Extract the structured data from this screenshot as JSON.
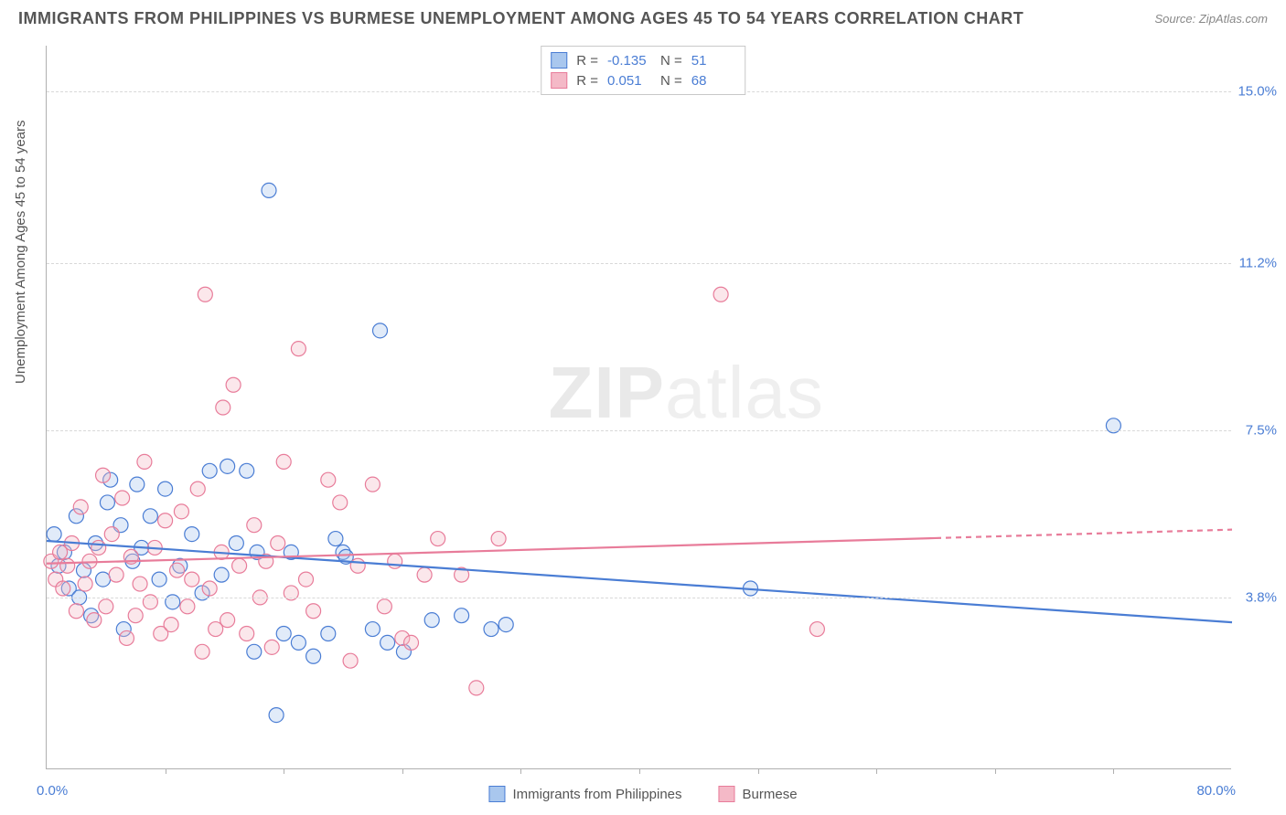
{
  "header": {
    "title": "IMMIGRANTS FROM PHILIPPINES VS BURMESE UNEMPLOYMENT AMONG AGES 45 TO 54 YEARS CORRELATION CHART",
    "source": "Source: ZipAtlas.com"
  },
  "watermark": {
    "bold": "ZIP",
    "light": "atlas"
  },
  "chart": {
    "type": "scatter-correlation",
    "background_color": "#ffffff",
    "grid_color": "#d8d8d8",
    "axis_color": "#b0b0b0",
    "tick_label_color": "#4a7dd4",
    "label_fontsize": 15,
    "title_fontsize": 18,
    "xlim": [
      0,
      80
    ],
    "ylim": [
      0,
      16
    ],
    "x_min_label": "0.0%",
    "x_max_label": "80.0%",
    "y_axis_label": "Unemployment Among Ages 45 to 54 years",
    "y_ticks": [
      {
        "value": 3.8,
        "label": "3.8%"
      },
      {
        "value": 7.5,
        "label": "7.5%"
      },
      {
        "value": 11.2,
        "label": "11.2%"
      },
      {
        "value": 15.0,
        "label": "15.0%"
      }
    ],
    "x_tick_positions": [
      8,
      16,
      24,
      32,
      40,
      48,
      56,
      64,
      72
    ],
    "marker_radius": 8,
    "marker_stroke_width": 1.2,
    "marker_fill_opacity": 0.35,
    "line_width": 2.2,
    "legend_bottom": [
      {
        "label": "Immigrants from Philippines",
        "fill": "#a9c7ee",
        "stroke": "#4a7dd4"
      },
      {
        "label": "Burmese",
        "fill": "#f4b9c7",
        "stroke": "#e87c9a"
      }
    ],
    "legend_top": [
      {
        "swatch_fill": "#a9c7ee",
        "swatch_stroke": "#4a7dd4",
        "r_label": "R =",
        "r_value": "-0.135",
        "n_label": "N =",
        "n_value": "51"
      },
      {
        "swatch_fill": "#f4b9c7",
        "swatch_stroke": "#e87c9a",
        "r_label": "R =",
        "r_value": "0.051",
        "n_label": "N =",
        "n_value": "68"
      }
    ],
    "series": [
      {
        "name": "Immigrants from Philippines",
        "color_fill": "#a9c7ee",
        "color_stroke": "#4a7dd4",
        "trend": {
          "y_at_x0": 5.05,
          "y_at_xmax": 3.25,
          "solid_until_x": 80,
          "dash_pattern": "6,5"
        },
        "points": [
          [
            0.5,
            5.2
          ],
          [
            0.8,
            4.5
          ],
          [
            1.2,
            4.8
          ],
          [
            1.5,
            4.0
          ],
          [
            2.0,
            5.6
          ],
          [
            2.2,
            3.8
          ],
          [
            2.5,
            4.4
          ],
          [
            3.0,
            3.4
          ],
          [
            3.3,
            5.0
          ],
          [
            3.8,
            4.2
          ],
          [
            4.1,
            5.9
          ],
          [
            4.3,
            6.4
          ],
          [
            5.0,
            5.4
          ],
          [
            5.2,
            3.1
          ],
          [
            5.8,
            4.6
          ],
          [
            6.1,
            6.3
          ],
          [
            6.4,
            4.9
          ],
          [
            7.0,
            5.6
          ],
          [
            7.6,
            4.2
          ],
          [
            8.0,
            6.2
          ],
          [
            8.5,
            3.7
          ],
          [
            9.0,
            4.5
          ],
          [
            9.8,
            5.2
          ],
          [
            10.5,
            3.9
          ],
          [
            11.0,
            6.6
          ],
          [
            11.8,
            4.3
          ],
          [
            12.2,
            6.7
          ],
          [
            12.8,
            5.0
          ],
          [
            13.5,
            6.6
          ],
          [
            14.0,
            2.6
          ],
          [
            14.2,
            4.8
          ],
          [
            15.0,
            12.8
          ],
          [
            15.5,
            1.2
          ],
          [
            16.0,
            3.0
          ],
          [
            16.5,
            4.8
          ],
          [
            17.0,
            2.8
          ],
          [
            18.0,
            2.5
          ],
          [
            19.0,
            3.0
          ],
          [
            19.5,
            5.1
          ],
          [
            20.0,
            4.8
          ],
          [
            20.2,
            4.7
          ],
          [
            22.0,
            3.1
          ],
          [
            22.5,
            9.7
          ],
          [
            23.0,
            2.8
          ],
          [
            24.1,
            2.6
          ],
          [
            26.0,
            3.3
          ],
          [
            28.0,
            3.4
          ],
          [
            30.0,
            3.1
          ],
          [
            31.0,
            3.2
          ],
          [
            47.5,
            4.0
          ],
          [
            72.0,
            7.6
          ]
        ]
      },
      {
        "name": "Burmese",
        "color_fill": "#f4b9c7",
        "color_stroke": "#e87c9a",
        "trend": {
          "y_at_x0": 4.55,
          "y_at_xmax": 5.3,
          "solid_until_x": 60,
          "dash_pattern": "6,5"
        },
        "points": [
          [
            0.3,
            4.6
          ],
          [
            0.6,
            4.2
          ],
          [
            0.9,
            4.8
          ],
          [
            1.1,
            4.0
          ],
          [
            1.4,
            4.5
          ],
          [
            1.7,
            5.0
          ],
          [
            2.0,
            3.5
          ],
          [
            2.3,
            5.8
          ],
          [
            2.6,
            4.1
          ],
          [
            2.9,
            4.6
          ],
          [
            3.2,
            3.3
          ],
          [
            3.5,
            4.9
          ],
          [
            3.8,
            6.5
          ],
          [
            4.0,
            3.6
          ],
          [
            4.4,
            5.2
          ],
          [
            4.7,
            4.3
          ],
          [
            5.1,
            6.0
          ],
          [
            5.4,
            2.9
          ],
          [
            5.7,
            4.7
          ],
          [
            6.0,
            3.4
          ],
          [
            6.3,
            4.1
          ],
          [
            6.6,
            6.8
          ],
          [
            7.0,
            3.7
          ],
          [
            7.3,
            4.9
          ],
          [
            7.7,
            3.0
          ],
          [
            8.0,
            5.5
          ],
          [
            8.4,
            3.2
          ],
          [
            8.8,
            4.4
          ],
          [
            9.1,
            5.7
          ],
          [
            9.5,
            3.6
          ],
          [
            9.8,
            4.2
          ],
          [
            10.2,
            6.2
          ],
          [
            10.5,
            2.6
          ],
          [
            10.7,
            10.5
          ],
          [
            11.0,
            4.0
          ],
          [
            11.4,
            3.1
          ],
          [
            11.8,
            4.8
          ],
          [
            11.9,
            8.0
          ],
          [
            12.2,
            3.3
          ],
          [
            12.6,
            8.5
          ],
          [
            13.0,
            4.5
          ],
          [
            13.5,
            3.0
          ],
          [
            14.0,
            5.4
          ],
          [
            14.4,
            3.8
          ],
          [
            14.8,
            4.6
          ],
          [
            15.2,
            2.7
          ],
          [
            15.6,
            5.0
          ],
          [
            16.0,
            6.8
          ],
          [
            16.5,
            3.9
          ],
          [
            17.0,
            9.3
          ],
          [
            17.5,
            4.2
          ],
          [
            18.0,
            3.5
          ],
          [
            19.0,
            6.4
          ],
          [
            19.8,
            5.9
          ],
          [
            20.5,
            2.4
          ],
          [
            21.0,
            4.5
          ],
          [
            22.0,
            6.3
          ],
          [
            22.8,
            3.6
          ],
          [
            23.5,
            4.6
          ],
          [
            24.0,
            2.9
          ],
          [
            24.6,
            2.8
          ],
          [
            25.5,
            4.3
          ],
          [
            26.4,
            5.1
          ],
          [
            28.0,
            4.3
          ],
          [
            29.0,
            1.8
          ],
          [
            30.5,
            5.1
          ],
          [
            45.5,
            10.5
          ],
          [
            52.0,
            3.1
          ]
        ]
      }
    ]
  }
}
